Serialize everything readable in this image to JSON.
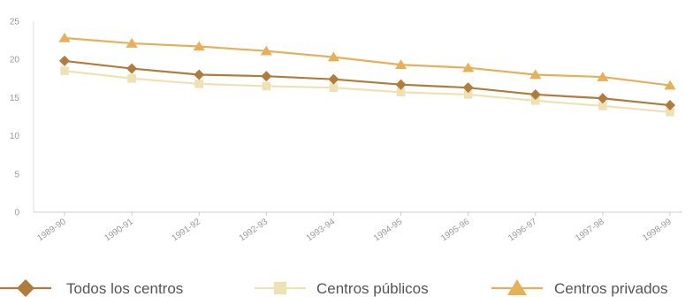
{
  "chart_data": {
    "type": "line",
    "title": "",
    "xlabel": "",
    "ylabel": "",
    "categories": [
      "1989-90",
      "1990-91",
      "1991-92",
      "1992-93",
      "1993-94",
      "1994-95",
      "1995-96",
      "1996-97",
      "1997-98",
      "1998-99"
    ],
    "ylim": [
      0,
      25
    ],
    "yticks": [
      0,
      5,
      10,
      15,
      20,
      25
    ],
    "grid": false,
    "legend_position": "bottom",
    "series": [
      {
        "name": "Todos los centros",
        "marker": "diamond",
        "color": "#b07c3c",
        "values": [
          19.8,
          18.8,
          18.0,
          17.8,
          17.4,
          16.7,
          16.3,
          15.4,
          14.9,
          14.0
        ]
      },
      {
        "name": "Centros públicos",
        "marker": "square",
        "color": "#eee2b4",
        "values": [
          18.5,
          17.5,
          16.8,
          16.5,
          16.3,
          15.7,
          15.4,
          14.6,
          13.9,
          13.1
        ]
      },
      {
        "name": "Centros privados",
        "marker": "triangle",
        "color": "#e6b05a",
        "values": [
          22.8,
          22.1,
          21.7,
          21.1,
          20.3,
          19.3,
          18.9,
          18.0,
          17.7,
          16.6
        ]
      }
    ]
  }
}
